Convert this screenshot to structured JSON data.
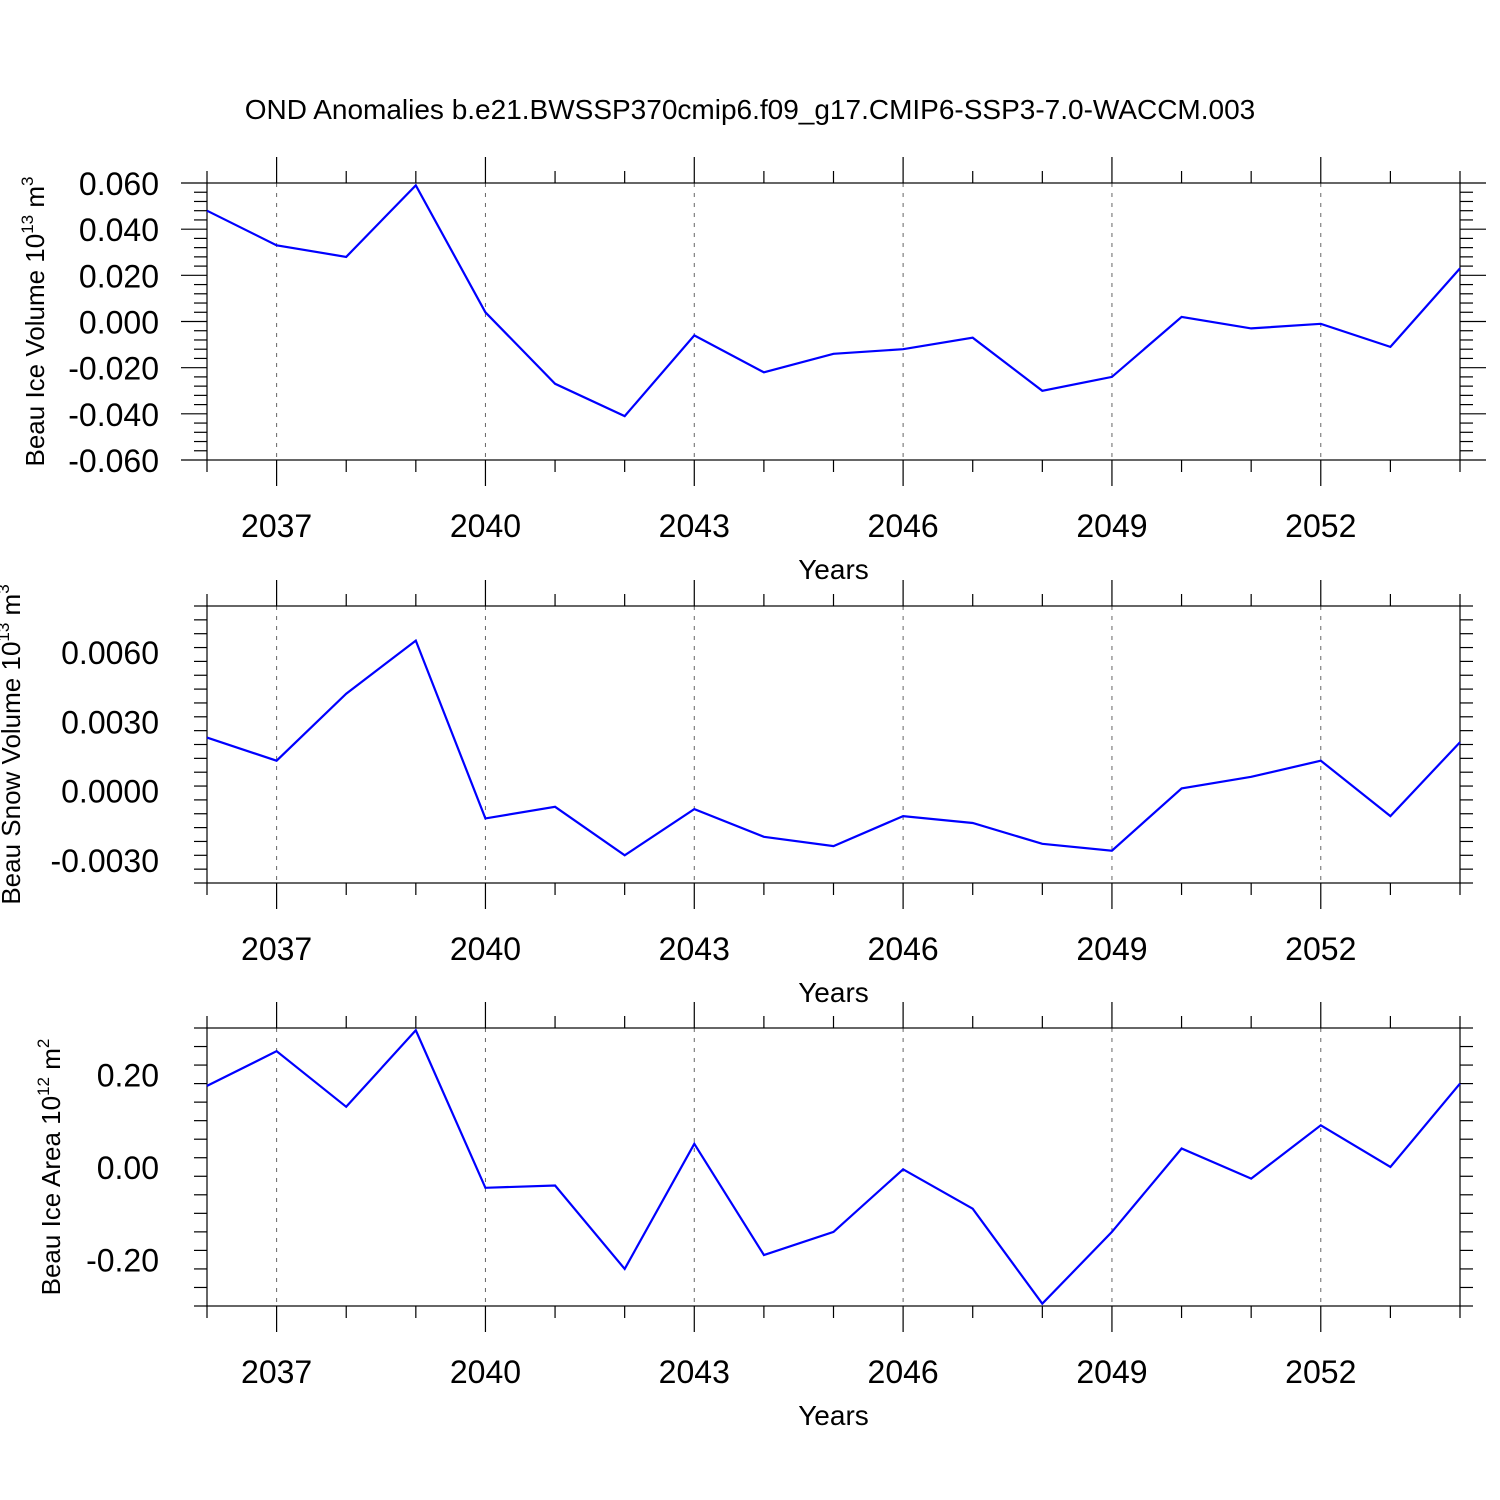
{
  "title": "OND Anomalies b.e21.BWSSP370cmip6.f09_g17.CMIP6-SSP3-7.0-WACCM.003",
  "colors": {
    "line": "#0000ff",
    "axis": "#000000",
    "grid": "#666666"
  },
  "chart_data": [
    {
      "type": "line",
      "xlabel": "Years",
      "ylabel": {
        "main": "Beau Ice Volume 10",
        "sup": "13",
        "unit": " m",
        "unit_sup": "3"
      },
      "xlim": [
        2036,
        2054
      ],
      "ylim": [
        -0.06,
        0.06
      ],
      "xticks": [
        2037,
        2040,
        2043,
        2046,
        2049,
        2052
      ],
      "xtick_labels": [
        "2037",
        "2040",
        "2043",
        "2046",
        "2049",
        "2052"
      ],
      "yticks": [
        -0.06,
        -0.04,
        -0.02,
        0.0,
        0.02,
        0.04,
        0.06
      ],
      "ytick_labels": [
        "-0.060",
        "-0.040",
        "-0.020",
        "0.000",
        "0.020",
        "0.040",
        "0.060"
      ],
      "grid": "vertical dashed at major x ticks",
      "x": [
        2036,
        2037,
        2038,
        2039,
        2040,
        2041,
        2042,
        2043,
        2044,
        2045,
        2046,
        2047,
        2048,
        2049,
        2050,
        2051,
        2052,
        2053,
        2054
      ],
      "series": [
        {
          "values": [
            0.048,
            0.033,
            0.028,
            0.059,
            0.004,
            -0.027,
            -0.041,
            -0.006,
            -0.022,
            -0.014,
            -0.012,
            -0.007,
            -0.03,
            -0.024,
            0.002,
            -0.003,
            -0.001,
            -0.011,
            0.023
          ]
        }
      ]
    },
    {
      "type": "line",
      "xlabel": "Years",
      "ylabel": {
        "main": "Beau Snow Volume 10",
        "sup": "13",
        "unit": " m",
        "unit_sup": "3"
      },
      "xlim": [
        2036,
        2054
      ],
      "ylim": [
        -0.004,
        0.008
      ],
      "xticks": [
        2037,
        2040,
        2043,
        2046,
        2049,
        2052
      ],
      "xtick_labels": [
        "2037",
        "2040",
        "2043",
        "2046",
        "2049",
        "2052"
      ],
      "yticks": [
        -0.003,
        0.0,
        0.003,
        0.006
      ],
      "ytick_labels": [
        "-0.0030",
        "0.0000",
        "0.0030",
        "0.0060"
      ],
      "grid": "vertical dashed at major x ticks",
      "x": [
        2036,
        2037,
        2038,
        2039,
        2040,
        2041,
        2042,
        2043,
        2044,
        2045,
        2046,
        2047,
        2048,
        2049,
        2050,
        2051,
        2052,
        2053,
        2054
      ],
      "series": [
        {
          "values": [
            0.0023,
            0.0013,
            0.0042,
            0.0065,
            -0.0012,
            -0.0007,
            -0.0028,
            -0.0008,
            -0.002,
            -0.0024,
            -0.0011,
            -0.0014,
            -0.0023,
            -0.0026,
            0.0001,
            0.0006,
            0.0013,
            -0.0011,
            0.0021
          ]
        }
      ]
    },
    {
      "type": "line",
      "xlabel": "Years",
      "ylabel": {
        "main": "Beau Ice Area 10",
        "sup": "12",
        "unit": " m",
        "unit_sup": "2"
      },
      "xlim": [
        2036,
        2054
      ],
      "ylim": [
        -0.3,
        0.3
      ],
      "xticks": [
        2037,
        2040,
        2043,
        2046,
        2049,
        2052
      ],
      "xtick_labels": [
        "2037",
        "2040",
        "2043",
        "2046",
        "2049",
        "2052"
      ],
      "yticks": [
        -0.2,
        0.0,
        0.2
      ],
      "ytick_labels": [
        "-0.20",
        "0.00",
        "0.20"
      ],
      "grid": "vertical dashed at major x ticks",
      "x": [
        2036,
        2037,
        2038,
        2039,
        2040,
        2041,
        2042,
        2043,
        2044,
        2045,
        2046,
        2047,
        2048,
        2049,
        2050,
        2051,
        2052,
        2053,
        2054
      ],
      "series": [
        {
          "values": [
            0.175,
            0.25,
            0.13,
            0.295,
            -0.045,
            -0.04,
            -0.22,
            0.05,
            -0.19,
            -0.14,
            -0.005,
            -0.09,
            -0.295,
            -0.14,
            0.04,
            -0.025,
            0.09,
            0.0,
            0.18
          ]
        }
      ]
    }
  ]
}
